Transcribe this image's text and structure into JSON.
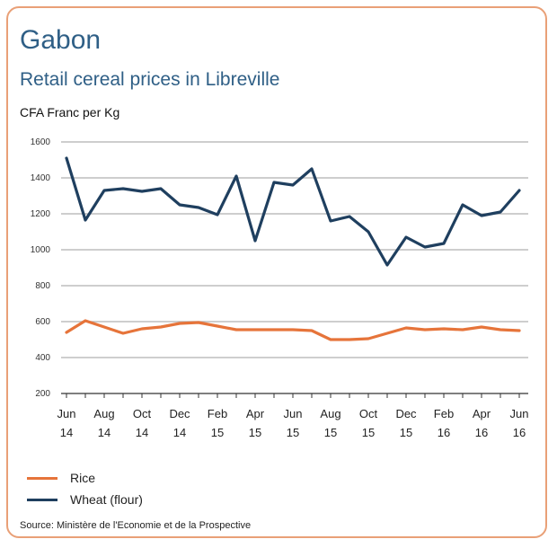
{
  "header": {
    "title": "Gabon",
    "subtitle": "Retail cereal prices in Libreville",
    "unit": "CFA Franc  per Kg"
  },
  "source": "Source: Ministère de l'Economie et de la Prospective",
  "colors": {
    "rice": "#e6743a",
    "wheat": "#1f3f5f",
    "frame": "#e9a077",
    "grid": "#bdbdbd"
  },
  "chart_data": {
    "type": "line",
    "ylim": [
      200,
      1600
    ],
    "yticks": [
      200,
      400,
      600,
      800,
      1000,
      1200,
      1400,
      1600
    ],
    "grid": true,
    "legend_position": "bottom-left",
    "x_tick_labels": [
      {
        "month": "Jun",
        "year": "14",
        "index": 0
      },
      {
        "month": "Aug",
        "year": "14",
        "index": 2
      },
      {
        "month": "Oct",
        "year": "14",
        "index": 4
      },
      {
        "month": "Dec",
        "year": "14",
        "index": 6
      },
      {
        "month": "Feb",
        "year": "15",
        "index": 8
      },
      {
        "month": "Apr",
        "year": "15",
        "index": 10
      },
      {
        "month": "Jun",
        "year": "15",
        "index": 12
      },
      {
        "month": "Aug",
        "year": "15",
        "index": 14
      },
      {
        "month": "Oct",
        "year": "15",
        "index": 16
      },
      {
        "month": "Dec",
        "year": "15",
        "index": 18
      },
      {
        "month": "Feb",
        "year": "16",
        "index": 20
      },
      {
        "month": "Apr",
        "year": "16",
        "index": 22
      },
      {
        "month": "Jun",
        "year": "16",
        "index": 24
      }
    ],
    "series": [
      {
        "name": "Rice",
        "color": "#e6743a",
        "values": [
          540,
          605,
          570,
          535,
          560,
          570,
          590,
          595,
          575,
          555,
          555,
          555,
          555,
          550,
          500,
          500,
          505,
          535,
          565,
          555,
          560,
          555,
          570,
          555,
          550
        ]
      },
      {
        "name": "Wheat (flour)",
        "color": "#1f3f5f",
        "values": [
          1510,
          1165,
          1330,
          1340,
          1325,
          1340,
          1250,
          1235,
          1195,
          1410,
          1050,
          1375,
          1360,
          1450,
          1160,
          1185,
          1100,
          915,
          1070,
          1015,
          1035,
          1250,
          1190,
          1210,
          1330
        ]
      }
    ]
  }
}
